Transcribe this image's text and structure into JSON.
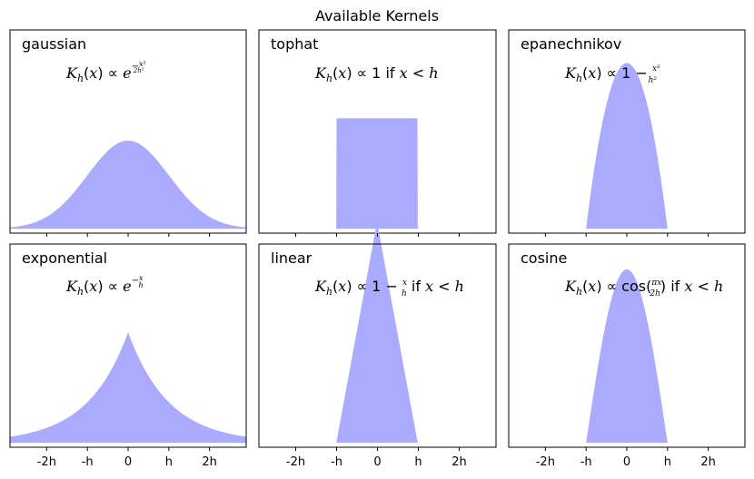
{
  "figure": {
    "title": "Available Kernels"
  },
  "chart_data": [
    {
      "type": "area",
      "name": "gaussian",
      "formula": "K_h(x) ∝ e^(−x²/2h²)",
      "xlim": [
        -2.9,
        2.9
      ],
      "ylim": [
        -0.02,
        0.9
      ],
      "x_ticks": [
        "-2h",
        "-h",
        "0",
        "h",
        "2h"
      ],
      "x_tick_values": [
        -2,
        -1,
        0,
        1,
        2
      ],
      "peak": 0.4,
      "support": "all x",
      "fill_color": "#aaaaff"
    },
    {
      "type": "area",
      "name": "tophat",
      "formula": "K_h(x) ∝ 1 if x < h",
      "xlim": [
        -2.9,
        2.9
      ],
      "ylim": [
        -0.02,
        0.9
      ],
      "x_ticks": [
        "-2h",
        "-h",
        "0",
        "h",
        "2h"
      ],
      "x_tick_values": [
        -2,
        -1,
        0,
        1,
        2
      ],
      "peak": 0.5,
      "support": [
        -1,
        1
      ],
      "fill_color": "#aaaaff"
    },
    {
      "type": "area",
      "name": "epanechnikov",
      "formula": "K_h(x) ∝ 1 − x²/h²",
      "xlim": [
        -2.9,
        2.9
      ],
      "ylim": [
        -0.02,
        0.9
      ],
      "x_ticks": [
        "-2h",
        "-h",
        "0",
        "h",
        "2h"
      ],
      "x_tick_values": [
        -2,
        -1,
        0,
        1,
        2
      ],
      "peak": 0.75,
      "support": [
        -1,
        1
      ],
      "fill_color": "#aaaaff"
    },
    {
      "type": "area",
      "name": "exponential",
      "formula": "K_h(x) ∝ e^(−x/h)",
      "xlim": [
        -2.9,
        2.9
      ],
      "ylim": [
        -0.02,
        0.9
      ],
      "x_ticks": [
        "-2h",
        "-h",
        "0",
        "h",
        "2h"
      ],
      "x_tick_values": [
        -2,
        -1,
        0,
        1,
        2
      ],
      "peak": 0.5,
      "support": "all x",
      "fill_color": "#aaaaff"
    },
    {
      "type": "area",
      "name": "linear",
      "formula": "K_h(x) ∝ 1 − x/h if x < h",
      "xlim": [
        -2.9,
        2.9
      ],
      "ylim": [
        -0.02,
        0.9
      ],
      "x_ticks": [
        "-2h",
        "-h",
        "0",
        "h",
        "2h"
      ],
      "x_tick_values": [
        -2,
        -1,
        0,
        1,
        2
      ],
      "peak": 1.0,
      "support": [
        -1,
        1
      ],
      "fill_color": "#aaaaff"
    },
    {
      "type": "area",
      "name": "cosine",
      "formula": "K_h(x) ∝ cos(πx/2h) if x < h",
      "xlim": [
        -2.9,
        2.9
      ],
      "ylim": [
        -0.02,
        0.9
      ],
      "x_ticks": [
        "-2h",
        "-h",
        "0",
        "h",
        "2h"
      ],
      "x_tick_values": [
        -2,
        -1,
        0,
        1,
        2
      ],
      "peak": 0.785,
      "support": [
        -1,
        1
      ],
      "fill_color": "#aaaaff"
    }
  ]
}
